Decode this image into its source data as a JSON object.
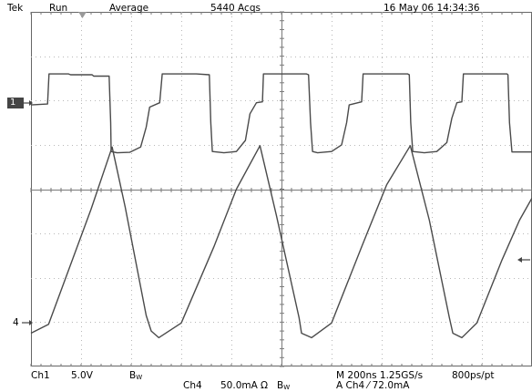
{
  "header": {
    "brand": "Tek",
    "run_state": "Run",
    "acq_mode": "Average",
    "acq_count": "5440 Acqs",
    "datetime": "16 May 06 14:34:36"
  },
  "markers": {
    "ch1": "1",
    "ch4": "4"
  },
  "footer": {
    "ch1_label": "Ch1",
    "ch1_scale": "5.0V",
    "ch1_bw": "B",
    "ch1_bw_sub": "W",
    "ch4_label": "Ch4",
    "ch4_scale": "50.0mA",
    "ch4_ohm": "Ω",
    "ch4_bw": "B",
    "ch4_bw_sub": "W",
    "timebase": "M 200ns 1.25GS/s",
    "resolution": "800ps/pt",
    "trigger": "A  Ch4  ⁄  72.0mA"
  },
  "colors": {
    "trace": "#4a4a4a",
    "grid": "#b8b8b8",
    "grid_major": "#7a7a7a",
    "frame": "#666666"
  },
  "chart_data": [
    {
      "type": "line",
      "name": "Ch1",
      "scale_label": "5.0V",
      "x_unit": "divisions (200ns/div)",
      "y_unit": "divisions",
      "xlim": [
        0,
        10
      ],
      "ylim": [
        -4,
        4
      ],
      "points": [
        [
          0.0,
          1.9
        ],
        [
          0.33,
          1.92
        ],
        [
          0.36,
          2.6
        ],
        [
          0.75,
          2.6
        ],
        [
          0.79,
          2.58
        ],
        [
          1.22,
          2.58
        ],
        [
          1.25,
          2.55
        ],
        [
          1.56,
          2.55
        ],
        [
          1.59,
          1.5
        ],
        [
          1.6,
          0.85
        ],
        [
          1.72,
          0.82
        ],
        [
          1.97,
          0.83
        ],
        [
          2.19,
          0.95
        ],
        [
          2.3,
          1.4
        ],
        [
          2.37,
          1.85
        ],
        [
          2.57,
          1.95
        ],
        [
          2.62,
          2.6
        ],
        [
          3.0,
          2.6
        ],
        [
          3.3,
          2.6
        ],
        [
          3.56,
          2.58
        ],
        [
          3.59,
          1.5
        ],
        [
          3.62,
          0.85
        ],
        [
          3.85,
          0.82
        ],
        [
          4.1,
          0.85
        ],
        [
          4.28,
          1.1
        ],
        [
          4.37,
          1.7
        ],
        [
          4.5,
          1.95
        ],
        [
          4.62,
          1.97
        ],
        [
          4.64,
          2.6
        ],
        [
          5.5,
          2.6
        ],
        [
          5.54,
          2.58
        ],
        [
          5.58,
          1.5
        ],
        [
          5.62,
          0.85
        ],
        [
          5.72,
          0.82
        ],
        [
          6.0,
          0.85
        ],
        [
          6.2,
          1.0
        ],
        [
          6.3,
          1.5
        ],
        [
          6.35,
          1.9
        ],
        [
          6.6,
          1.97
        ],
        [
          6.63,
          2.6
        ],
        [
          7.52,
          2.6
        ],
        [
          7.55,
          2.58
        ],
        [
          7.58,
          1.5
        ],
        [
          7.62,
          0.85
        ],
        [
          7.85,
          0.82
        ],
        [
          8.1,
          0.85
        ],
        [
          8.3,
          1.05
        ],
        [
          8.4,
          1.6
        ],
        [
          8.5,
          1.95
        ],
        [
          8.6,
          1.97
        ],
        [
          8.63,
          2.6
        ],
        [
          9.5,
          2.6
        ],
        [
          9.52,
          2.58
        ],
        [
          9.55,
          1.5
        ],
        [
          9.6,
          0.84
        ],
        [
          10.0,
          0.84
        ]
      ]
    },
    {
      "type": "line",
      "name": "Ch4",
      "scale_label": "50.0mA",
      "x_unit": "divisions (200ns/div)",
      "y_unit": "divisions",
      "xlim": [
        0,
        10
      ],
      "ylim": [
        -4,
        4
      ],
      "points": [
        [
          0.0,
          -3.25
        ],
        [
          0.35,
          -3.05
        ],
        [
          1.2,
          -0.45
        ],
        [
          1.62,
          0.95
        ],
        [
          1.88,
          -0.4
        ],
        [
          2.3,
          -2.85
        ],
        [
          2.4,
          -3.2
        ],
        [
          2.55,
          -3.35
        ],
        [
          3.0,
          -3.02
        ],
        [
          3.65,
          -1.3
        ],
        [
          4.1,
          0.0
        ],
        [
          4.57,
          0.98
        ],
        [
          4.9,
          -0.6
        ],
        [
          5.35,
          -2.9
        ],
        [
          5.4,
          -3.25
        ],
        [
          5.6,
          -3.35
        ],
        [
          6.0,
          -3.02
        ],
        [
          6.6,
          -1.3
        ],
        [
          7.1,
          0.1
        ],
        [
          7.57,
          0.98
        ],
        [
          7.95,
          -0.7
        ],
        [
          8.35,
          -2.9
        ],
        [
          8.42,
          -3.25
        ],
        [
          8.6,
          -3.35
        ],
        [
          8.9,
          -3.02
        ],
        [
          9.4,
          -1.6
        ],
        [
          9.75,
          -0.7
        ],
        [
          10.0,
          -0.2
        ]
      ]
    }
  ]
}
